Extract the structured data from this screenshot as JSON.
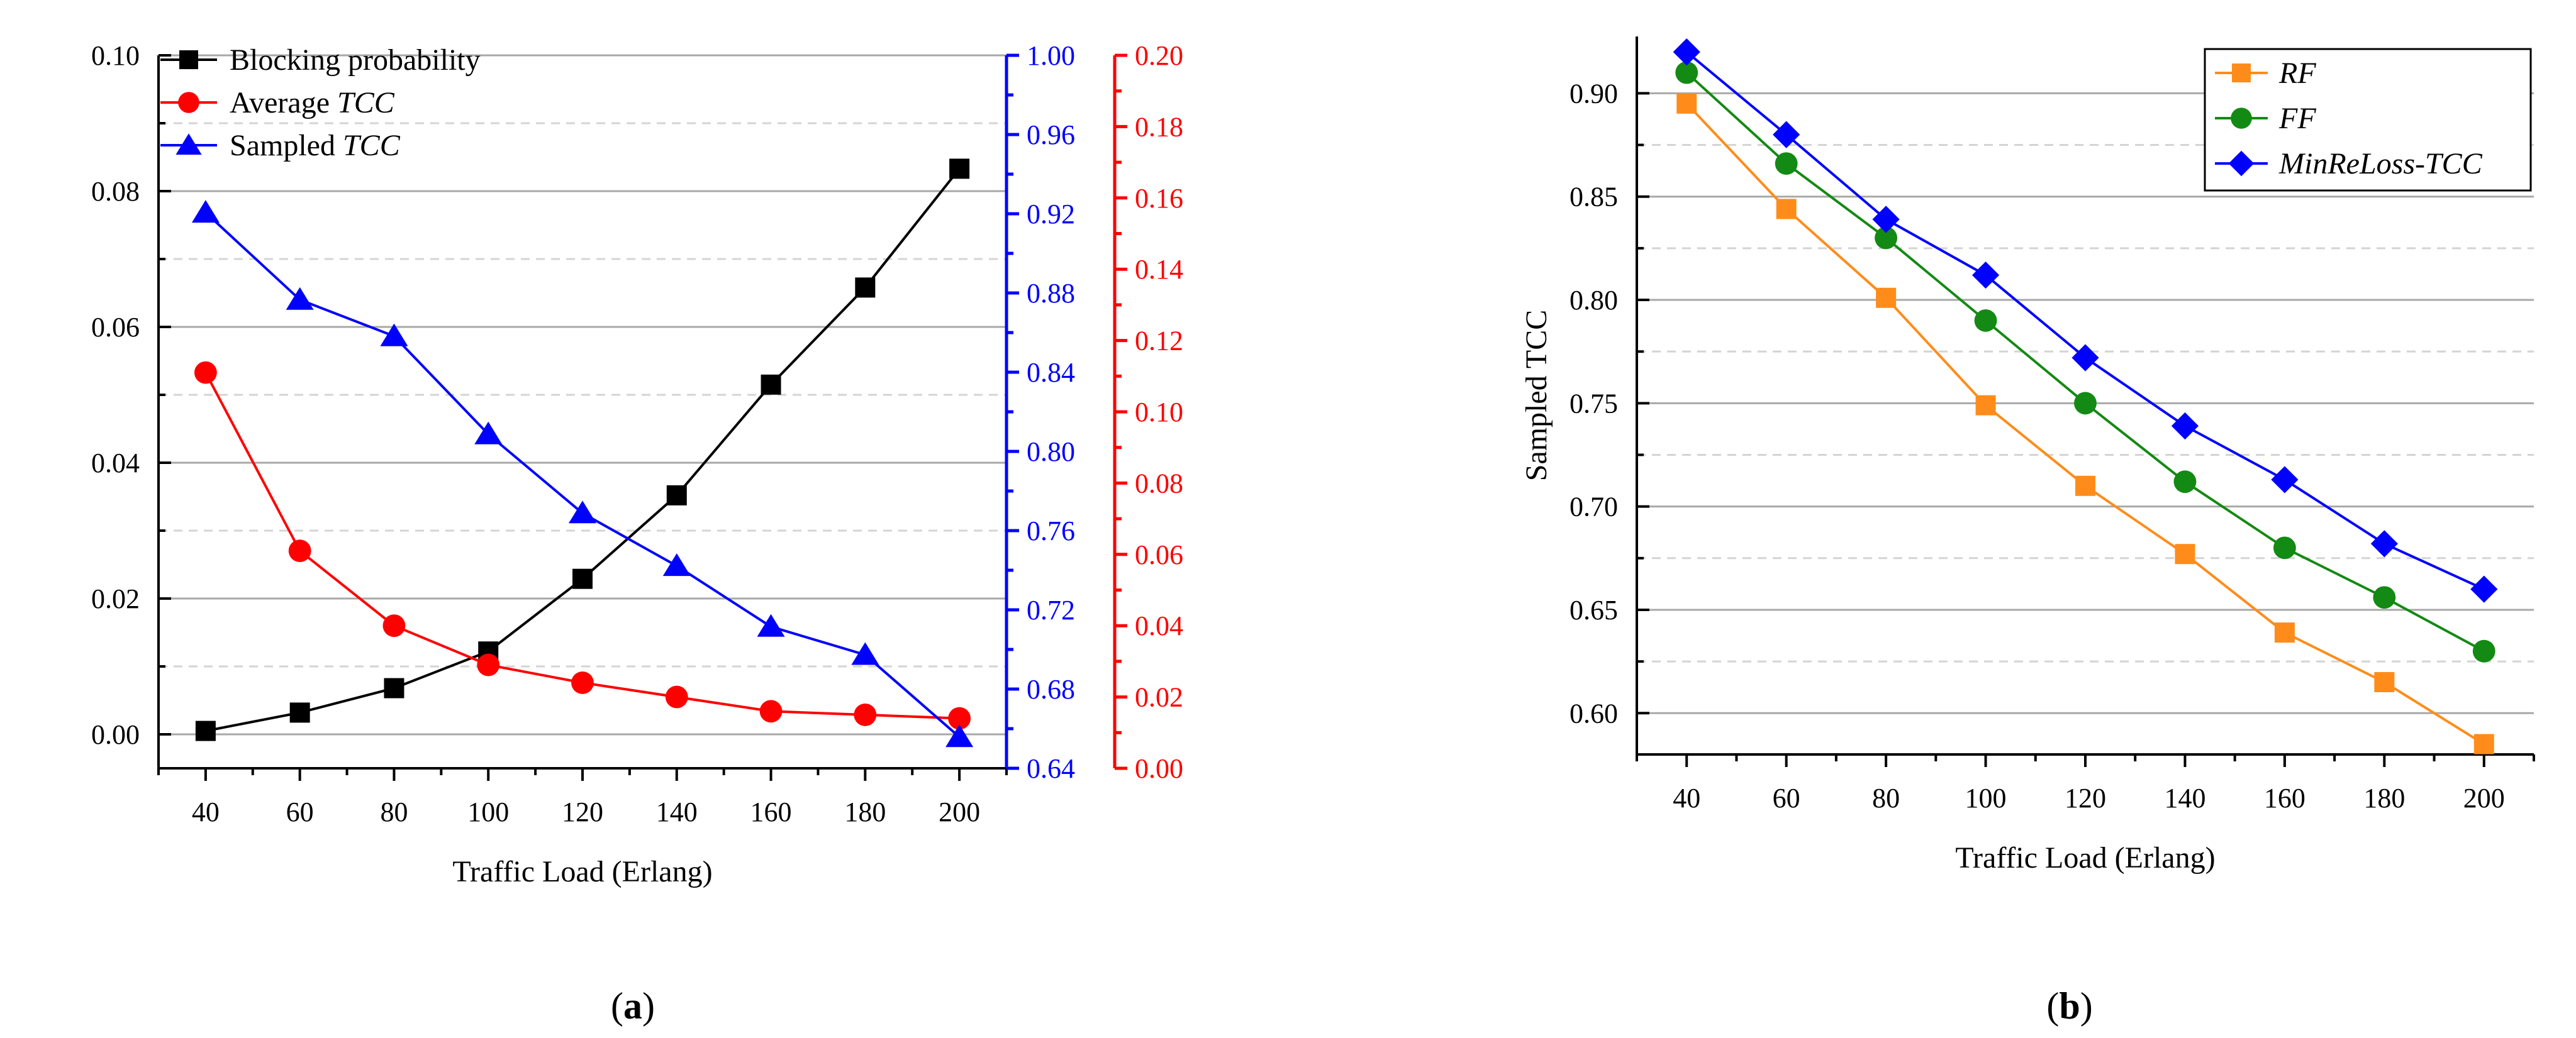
{
  "chart_data": [
    {
      "type": "line",
      "panel_label": "a",
      "xlabel": "Traffic Load (Erlang)",
      "x": [
        40,
        60,
        80,
        100,
        120,
        140,
        160,
        180,
        200
      ],
      "xlim": [
        30,
        210
      ],
      "x_ticks": [
        "40",
        "60",
        "80",
        "100",
        "120",
        "140",
        "160",
        "180",
        "200"
      ],
      "axes": {
        "left": {
          "color": "#000000",
          "ylim": [
            -0.005,
            0.1
          ],
          "ticks": [
            "0.00",
            "0.02",
            "0.04",
            "0.06",
            "0.08",
            "0.10"
          ]
        },
        "blue": {
          "color": "#0000ff",
          "ylim": [
            0.64,
            1.0
          ],
          "ticks": [
            "0.64",
            "0.68",
            "0.72",
            "0.76",
            "0.80",
            "0.84",
            "0.88",
            "0.92",
            "0.96",
            "1.00"
          ]
        },
        "red": {
          "color": "#ff0000",
          "ylim": [
            0.0,
            0.2
          ],
          "ticks": [
            "0.00",
            "0.02",
            "0.04",
            "0.06",
            "0.08",
            "0.10",
            "0.12",
            "0.14",
            "0.16",
            "0.18",
            "0.20"
          ]
        }
      },
      "series": [
        {
          "name": "Blocking probability",
          "name_plain": "Blocking probability",
          "name_italic": "",
          "axis": "left",
          "color": "#000000",
          "marker": "square",
          "values": [
            0.0005,
            0.0032,
            0.0068,
            0.0122,
            0.0229,
            0.0352,
            0.0515,
            0.0658,
            0.0833
          ]
        },
        {
          "name": "Average TCC",
          "name_plain": "Average ",
          "name_italic": "TCC",
          "axis": "red",
          "color": "#ff0000",
          "marker": "circle",
          "values": [
            0.111,
            0.061,
            0.04,
            0.029,
            0.024,
            0.02,
            0.016,
            0.015,
            0.014
          ]
        },
        {
          "name": "Sampled TCC",
          "name_plain": "Sampled ",
          "name_italic": "TCC",
          "axis": "blue",
          "color": "#0000ff",
          "marker": "triangle",
          "values": [
            0.9206,
            0.8766,
            0.8582,
            0.8087,
            0.7688,
            0.7422,
            0.7115,
            0.6973,
            0.6558
          ]
        }
      ],
      "legend_position": "top-left"
    },
    {
      "type": "line",
      "panel_label": "b",
      "xlabel": "Traffic Load (Erlang)",
      "ylabel": "Sampled TCC",
      "x": [
        40,
        60,
        80,
        100,
        120,
        140,
        160,
        180,
        200
      ],
      "xlim": [
        30,
        210
      ],
      "ylim": [
        0.58,
        0.9275
      ],
      "x_ticks": [
        "40",
        "60",
        "80",
        "100",
        "120",
        "140",
        "160",
        "180",
        "200"
      ],
      "y_ticks": [
        "0.60",
        "0.65",
        "0.70",
        "0.75",
        "0.80",
        "0.85",
        "0.90"
      ],
      "series": [
        {
          "name": "RF",
          "name_plain": "",
          "name_italic": "RF",
          "color": "#ff8c1a",
          "marker": "square",
          "values": [
            0.895,
            0.844,
            0.801,
            0.749,
            0.71,
            0.677,
            0.639,
            0.615,
            0.585
          ]
        },
        {
          "name": "FF",
          "name_plain": "",
          "name_italic": "FF",
          "color": "#138a13",
          "marker": "circle",
          "values": [
            0.91,
            0.866,
            0.83,
            0.79,
            0.75,
            0.712,
            0.68,
            0.656,
            0.63
          ]
        },
        {
          "name": "MinReLoss-TCC",
          "name_plain": "",
          "name_italic": "MinReLoss-TCC",
          "color": "#0000ff",
          "marker": "diamond",
          "values": [
            0.92,
            0.88,
            0.839,
            0.812,
            0.772,
            0.739,
            0.713,
            0.682,
            0.66
          ]
        }
      ],
      "legend_position": "top-right"
    }
  ]
}
